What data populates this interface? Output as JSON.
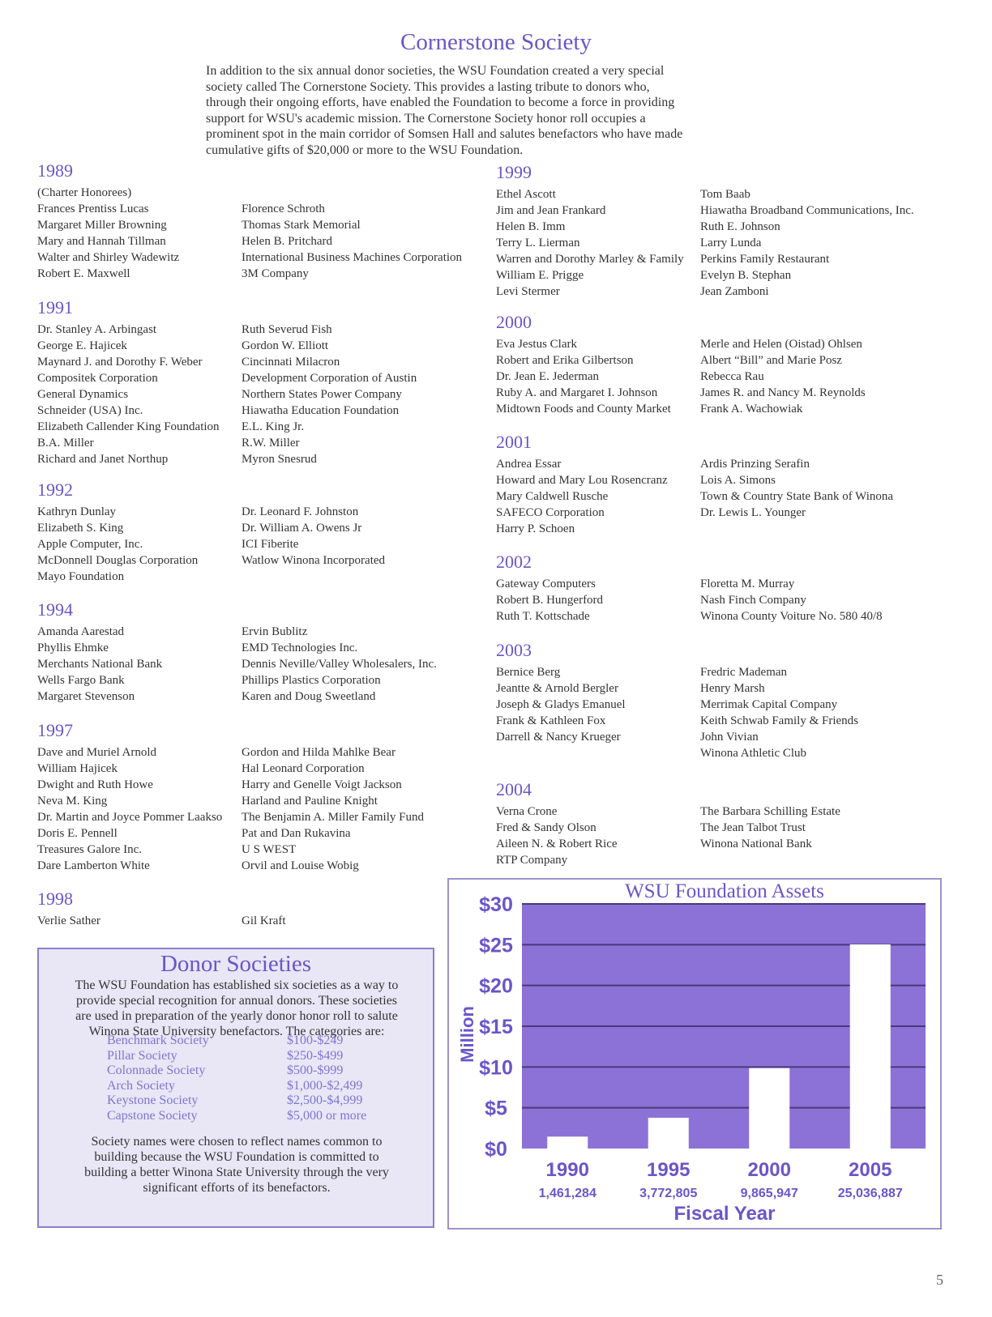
{
  "page_title": "Cornerstone Society",
  "intro_lines": [
    "In addition to the six annual donor societies, the WSU Foundation created a very special",
    "society called The Cornerstone Society.  This provides a lasting tribute to donors who,",
    "through their ongoing efforts, have enabled the Foundation to become a force in providing",
    "support for WSU's academic mission.  The Cornerstone Society honor roll occupies a",
    "prominent spot in the main corridor of Somsen Hall and salutes benefactors who have made",
    "cumulative gifts of $20,000 or more to the WSU Foundation."
  ],
  "honor_roll": [
    {
      "year": "1989",
      "col1": [
        "(Charter Honorees)",
        "Frances Prentiss Lucas",
        "Margaret Miller Browning",
        "Mary and Hannah Tillman",
        "Walter and Shirley Wadewitz",
        "Robert E. Maxwell"
      ],
      "col2": [
        "",
        "Florence Schroth",
        "Thomas Stark Memorial",
        "Helen B. Pritchard",
        "International Business Machines Corporation",
        "3M Company"
      ]
    },
    {
      "year": "1991",
      "col1": [
        "Dr. Stanley A. Arbingast",
        "George E. Hajicek",
        "Maynard J. and Dorothy F. Weber",
        "Compositek Corporation",
        "General Dynamics",
        "Schneider (USA) Inc.",
        "Elizabeth Callender King Foundation",
        "B.A. Miller",
        "Richard and Janet Northup"
      ],
      "col2": [
        "Ruth Severud Fish",
        "Gordon W. Elliott",
        "Cincinnati Milacron",
        "Development Corporation of Austin",
        "Northern States Power Company",
        "Hiawatha Education Foundation",
        "E.L. King Jr.",
        "R.W. Miller",
        "Myron Snesrud"
      ]
    },
    {
      "year": "1992",
      "col1": [
        "Kathryn Dunlay",
        "Elizabeth S. King",
        "Apple Computer, Inc.",
        "McDonnell Douglas Corporation",
        "Mayo Foundation"
      ],
      "col2": [
        "Dr. Leonard F. Johnston",
        "Dr. William A. Owens Jr",
        "ICI Fiberite",
        "Watlow Winona Incorporated"
      ]
    },
    {
      "year": "1994",
      "col1": [
        "Amanda Aarestad",
        "Phyllis Ehmke",
        "Merchants National Bank",
        "Wells Fargo Bank",
        "Margaret Stevenson"
      ],
      "col2": [
        "Ervin Bublitz",
        "EMD Technologies Inc.",
        "Dennis Neville/Valley Wholesalers, Inc.",
        "Phillips Plastics Corporation",
        "Karen and Doug Sweetland"
      ]
    },
    {
      "year": "1997",
      "col1": [
        "Dave and Muriel Arnold",
        "William Hajicek",
        "Dwight and Ruth Howe",
        "Neva M. King",
        "Dr. Martin and Joyce Pommer Laakso",
        "Doris E. Pennell",
        "Treasures Galore Inc.",
        "Dare Lamberton White"
      ],
      "col2": [
        "Gordon and Hilda Mahlke Bear",
        "Hal Leonard Corporation",
        "Harry and Genelle Voigt Jackson",
        "Harland and Pauline Knight",
        "The Benjamin A. Miller Family Fund",
        "Pat and Dan Rukavina",
        "U S WEST",
        "Orvil and Louise Wobig"
      ]
    },
    {
      "year": "1998",
      "col1": [
        "Verlie Sather"
      ],
      "col2": [
        "Gil Kraft"
      ]
    },
    {
      "year": "1999",
      "col1": [
        "Ethel Ascott",
        "Jim and Jean Frankard",
        "Helen B. Imm",
        "Terry L. Lierman",
        "Warren and Dorothy Marley & Family",
        "William E. Prigge",
        "Levi Stermer"
      ],
      "col2": [
        "Tom Baab",
        "Hiawatha Broadband Communications, Inc.",
        "Ruth E. Johnson",
        "Larry Lunda",
        "Perkins Family Restaurant",
        "Evelyn B. Stephan",
        "Jean Zamboni"
      ]
    },
    {
      "year": "2000",
      "col1": [
        "Eva Jestus Clark",
        "Robert and Erika Gilbertson",
        "Dr. Jean E. Jederman",
        "Ruby A. and Margaret I. Johnson",
        "Midtown Foods and County Market"
      ],
      "col2": [
        "Merle and Helen (Oistad) Ohlsen",
        "Albert “Bill” and Marie Posz",
        "Rebecca Rau",
        "James R. and Nancy M. Reynolds",
        "Frank A. Wachowiak"
      ]
    },
    {
      "year": "2001",
      "col1": [
        "Andrea Essar",
        "Howard and Mary Lou Rosencranz",
        "Mary Caldwell Rusche",
        "SAFECO Corporation",
        "Harry P. Schoen"
      ],
      "col2": [
        "Ardis Prinzing Serafin",
        "Lois A. Simons",
        "Town & Country State Bank of Winona",
        "Dr. Lewis L. Younger"
      ]
    },
    {
      "year": "2002",
      "col1": [
        "Gateway Computers",
        "Robert B. Hungerford",
        "Ruth T. Kottschade"
      ],
      "col2": [
        "Floretta M. Murray",
        "Nash Finch Company",
        "Winona County Voiture No. 580  40/8"
      ]
    },
    {
      "year": "2003",
      "col1": [
        "Bernice Berg",
        "Jeantte & Arnold Bergler",
        "Joseph & Gladys Emanuel",
        "Frank & Kathleen Fox",
        "Darrell & Nancy Krueger"
      ],
      "col2": [
        "Fredric Mademan",
        "Henry Marsh",
        "Merrimak Capital Company",
        "Keith Schwab Family & Friends",
        "John Vivian",
        "Winona Athletic Club"
      ]
    },
    {
      "year": "2004",
      "col1": [
        "Verna Crone",
        "Fred & Sandy Olson",
        "Aileen N. & Robert Rice",
        "RTP Company"
      ],
      "col2": [
        "The Barbara Schilling Estate",
        "The Jean Talbot Trust",
        "Winona National Bank"
      ]
    }
  ],
  "donor_societies": {
    "title": "Donor Societies",
    "intro_lines": [
      "The WSU Foundation has established six societies as a way to",
      "provide special recognition for annual donors.  These societies",
      "are used in preparation of the yearly donor honor roll to salute",
      "Winona State University benefactors.  The categories are:"
    ],
    "societies": [
      {
        "name": "Benchmark Society",
        "range": "$100-$249"
      },
      {
        "name": "Pillar Society",
        "range": "$250-$499"
      },
      {
        "name": "Colonnade Society",
        "range": "$500-$999"
      },
      {
        "name": "Arch Society",
        "range": "$1,000-$2,499"
      },
      {
        "name": "Keystone Society",
        "range": "$2,500-$4,999"
      },
      {
        "name": "Capstone Society",
        "range": "$5,000 or more"
      }
    ],
    "closing_lines": [
      "Society names were chosen to reflect names common to",
      "building because the WSU Foundation is committed to",
      "building a better Winona State University through the very",
      "significant efforts of its benefactors."
    ]
  },
  "chart_data": {
    "type": "bar",
    "title": "WSU Foundation Assets",
    "xlabel": "Fiscal Year",
    "ylabel": "Million",
    "categories": [
      "1990",
      "1995",
      "2000",
      "2005"
    ],
    "values": [
      1.461284,
      3.772805,
      9.865947,
      25.036887
    ],
    "value_labels": [
      "1,461,284",
      "3,772,805",
      "9,865,947",
      "25,036,887"
    ],
    "ylim": [
      0,
      30
    ],
    "yticks": [
      0,
      5,
      10,
      15,
      20,
      25,
      30
    ],
    "ytick_labels": [
      "$0",
      "$5",
      "$10",
      "$15",
      "$20",
      "$25",
      "$30"
    ],
    "grid": true,
    "colors": {
      "plot_bg": "#8c72d6",
      "bar": "#ffffff",
      "grid": "#4a3a78",
      "axis_text": "#6a56c8",
      "title": "#6a56c8"
    }
  },
  "page_number": "5"
}
